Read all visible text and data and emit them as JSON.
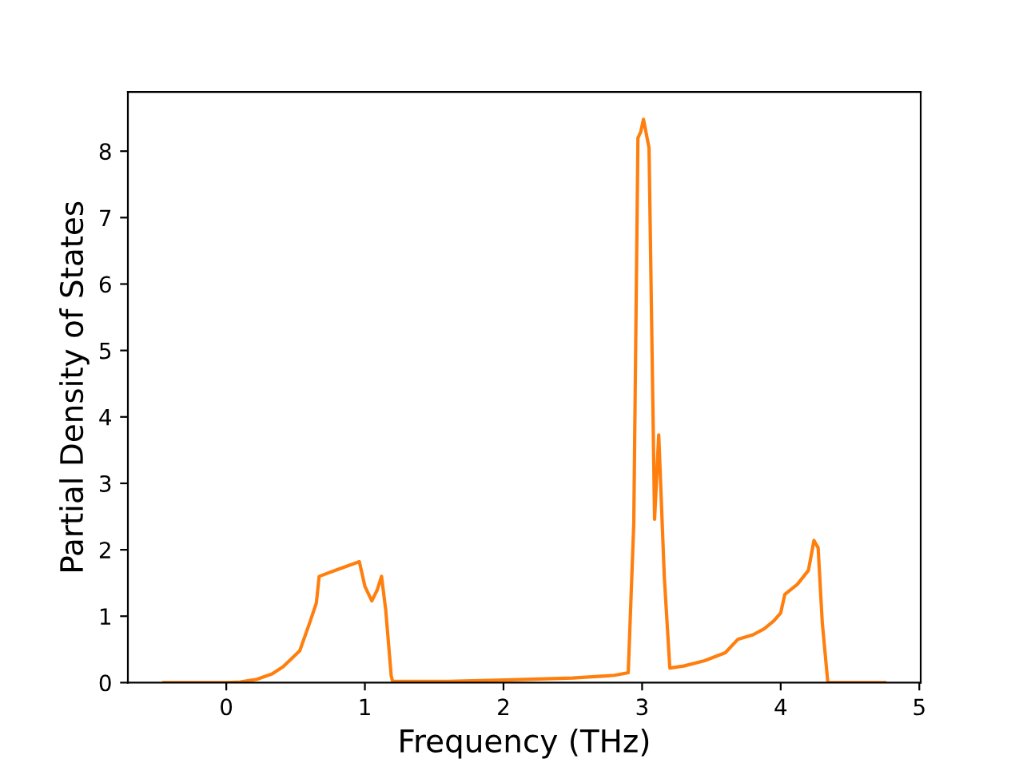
{
  "chart_data": {
    "type": "line",
    "xlabel": "Frequency (THz)",
    "ylabel": "Partial Density of States",
    "series": [
      {
        "color": "#ff7f0e",
        "x": [
          -0.45,
          -0.2,
          0.0,
          0.1,
          0.22,
          0.33,
          0.41,
          0.53,
          0.6,
          0.65,
          0.67,
          0.8,
          0.96,
          1.0,
          1.05,
          1.09,
          1.12,
          1.15,
          1.19,
          1.2,
          1.6,
          2.0,
          2.5,
          2.8,
          2.9,
          2.94,
          2.97,
          2.99,
          3.01,
          3.05,
          3.09,
          3.12,
          3.16,
          3.2,
          3.3,
          3.45,
          3.6,
          3.69,
          3.8,
          3.88,
          3.95,
          4.0,
          4.03,
          4.12,
          4.2,
          4.24,
          4.27,
          4.3,
          4.34,
          4.5,
          4.75
        ],
        "values": [
          0,
          0,
          0,
          0.01,
          0.05,
          0.13,
          0.24,
          0.48,
          0.89,
          1.2,
          1.6,
          1.7,
          1.82,
          1.45,
          1.23,
          1.4,
          1.6,
          1.1,
          0.1,
          0.02,
          0.02,
          0.04,
          0.07,
          0.11,
          0.15,
          2.4,
          8.2,
          8.29,
          8.48,
          8.05,
          2.46,
          3.73,
          1.6,
          0.22,
          0.25,
          0.33,
          0.45,
          0.65,
          0.72,
          0.81,
          0.93,
          1.05,
          1.33,
          1.48,
          1.69,
          2.14,
          2.03,
          0.9,
          0,
          0,
          0
        ]
      }
    ],
    "xlim": [
      -0.71,
      5.01
    ],
    "ylim": [
      0,
      8.89
    ],
    "xticks": [
      0,
      1,
      2,
      3,
      4,
      5
    ],
    "yticks": [
      0,
      1,
      2,
      3,
      4,
      5,
      6,
      7,
      8
    ],
    "grid": false,
    "legend": false,
    "marker": "none",
    "line_style": "solid"
  }
}
